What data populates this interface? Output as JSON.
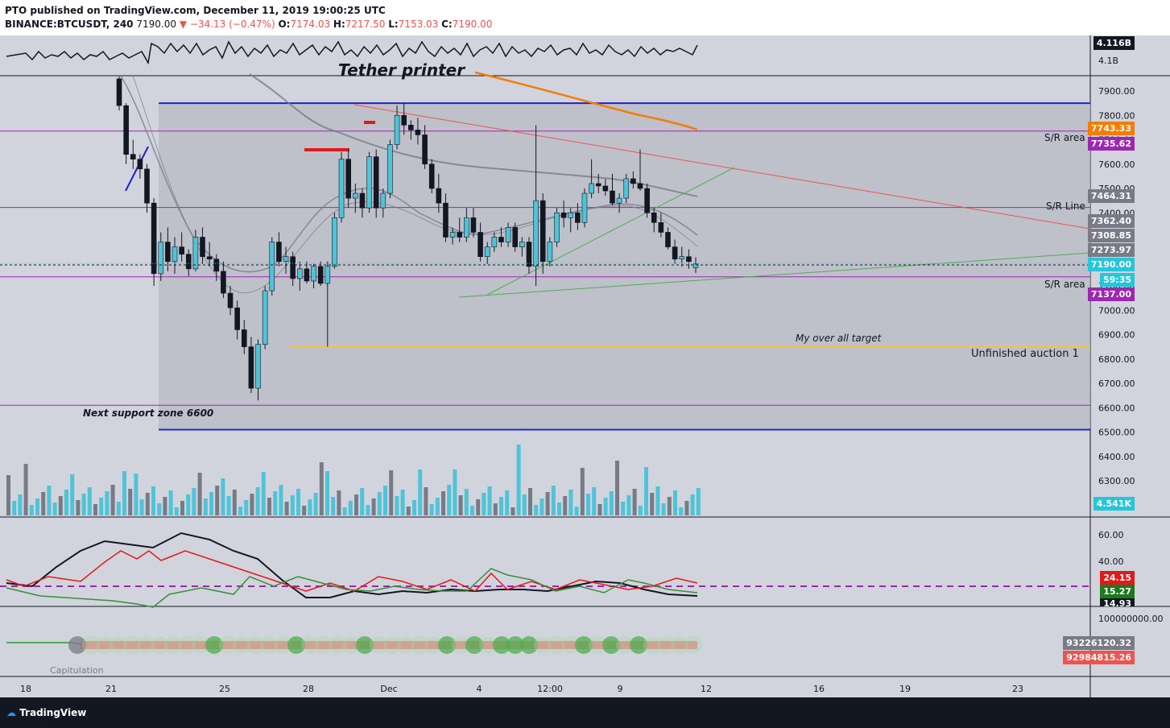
{
  "header": {
    "published": "PTO published on TradingView.com, December 11, 2019 19:00:25 UTC",
    "symbol": "BINANCE:BTCUSDT, 240",
    "price": "7190.00",
    "change": "▼ −34.13 (−0.47%)",
    "o": "7174.03",
    "h": "7217.50",
    "l": "7153.03",
    "c": "7190.00"
  },
  "annotations": {
    "tether": "Tether printer",
    "sr_area_1": "S/R area",
    "sr_line": "S/R Line",
    "sr_area_2": "S/R area",
    "target": "My over all target",
    "auction": "Unfinished auction 1",
    "support": "Next support zone  6600",
    "capitulation": "Capitulation"
  },
  "price_labels": [
    {
      "text": "4.116B",
      "bg": "#131722"
    },
    {
      "text": "7743.33",
      "bg": "#f57c00"
    },
    {
      "text": "7735.62",
      "bg": "#9c27b0"
    },
    {
      "text": "7464.31",
      "bg": "#787b86"
    },
    {
      "text": "7362.40",
      "bg": "#787b86"
    },
    {
      "text": "7308.85",
      "bg": "#787b86"
    },
    {
      "text": "7273.97",
      "bg": "#787b86"
    },
    {
      "text": "7190.00",
      "bg": "#26c6da"
    },
    {
      "text": "59:35",
      "bg": "#26c6da"
    },
    {
      "text": "7137.00",
      "bg": "#9c27b0"
    },
    {
      "text": "4.541K",
      "bg": "#26c6da"
    },
    {
      "text": "24.15",
      "bg": "#e31919"
    },
    {
      "text": "15.27",
      "bg": "#1b7a1b"
    },
    {
      "text": "14.93",
      "bg": "#131722"
    },
    {
      "text": "93226120.32",
      "bg": "#787b86"
    },
    {
      "text": "92984815.26",
      "bg": "#ef5350"
    }
  ],
  "footer": {
    "brand": "TradingView"
  },
  "colors": {
    "up": "#4fc3d7",
    "down": "#131722",
    "bg": "#d1d4dc",
    "shade": "#b9bcc6"
  },
  "chart_data": {
    "type": "candlestick",
    "price_axis_ticks": [
      "7900.00",
      "7800.00",
      "7700.00",
      "7600.00",
      "7500.00",
      "7400.00",
      "7300.00",
      "7200.00",
      "7100.00",
      "7000.00",
      "6900.00",
      "6800.00",
      "6700.00",
      "6600.00",
      "6500.00",
      "6400.00",
      "6300.00"
    ],
    "volume_axis_ticks": [
      "4.1B"
    ],
    "osc_axis_ticks": [
      "60.00",
      "40.00"
    ],
    "bottom_axis_ticks": [
      "100000000.00"
    ],
    "x_ticks": [
      "18",
      "21",
      "25",
      "28",
      "Dec",
      "4",
      "12:00",
      "9",
      "12",
      "16",
      "19",
      "23"
    ],
    "ylim": [
      6250,
      7950
    ],
    "levels": {
      "blue_top": 7850,
      "blue_bottom": 6510,
      "purple_sr1": 7735.62,
      "purple_sr_line": 7422,
      "purple_sr2": 7137,
      "purple_support": 6610,
      "target": 6850
    },
    "candles": [
      [
        7950,
        7960,
        7820,
        7840
      ],
      [
        7840,
        7850,
        7600,
        7640
      ],
      [
        7640,
        7700,
        7580,
        7620
      ],
      [
        7620,
        7640,
        7540,
        7580
      ],
      [
        7580,
        7600,
        7400,
        7440
      ],
      [
        7440,
        7460,
        7100,
        7150
      ],
      [
        7150,
        7320,
        7120,
        7280
      ],
      [
        7280,
        7340,
        7160,
        7200
      ],
      [
        7200,
        7300,
        7150,
        7260
      ],
      [
        7260,
        7320,
        7200,
        7230
      ],
      [
        7230,
        7250,
        7140,
        7170
      ],
      [
        7170,
        7330,
        7160,
        7300
      ],
      [
        7300,
        7340,
        7190,
        7220
      ],
      [
        7220,
        7280,
        7180,
        7210
      ],
      [
        7210,
        7230,
        7120,
        7160
      ],
      [
        7160,
        7200,
        7050,
        7070
      ],
      [
        7070,
        7100,
        6980,
        7010
      ],
      [
        7010,
        7040,
        6880,
        6920
      ],
      [
        6920,
        6960,
        6820,
        6850
      ],
      [
        6850,
        6890,
        6660,
        6680
      ],
      [
        6680,
        6880,
        6630,
        6860
      ],
      [
        6860,
        7100,
        6840,
        7080
      ],
      [
        7080,
        7300,
        7060,
        7280
      ],
      [
        7280,
        7320,
        7180,
        7200
      ],
      [
        7200,
        7260,
        7150,
        7220
      ],
      [
        7220,
        7240,
        7100,
        7130
      ],
      [
        7130,
        7200,
        7080,
        7170
      ],
      [
        7170,
        7200,
        7110,
        7120
      ],
      [
        7120,
        7190,
        7090,
        7180
      ],
      [
        7180,
        7200,
        7100,
        7110
      ],
      [
        7110,
        7200,
        6850,
        7180
      ],
      [
        7180,
        7400,
        7170,
        7380
      ],
      [
        7380,
        7650,
        7360,
        7620
      ],
      [
        7620,
        7660,
        7420,
        7460
      ],
      [
        7460,
        7520,
        7400,
        7480
      ],
      [
        7480,
        7500,
        7380,
        7420
      ],
      [
        7420,
        7650,
        7400,
        7630
      ],
      [
        7630,
        7660,
        7380,
        7420
      ],
      [
        7420,
        7500,
        7380,
        7480
      ],
      [
        7480,
        7700,
        7460,
        7680
      ],
      [
        7680,
        7840,
        7660,
        7800
      ],
      [
        7800,
        7850,
        7720,
        7760
      ],
      [
        7760,
        7780,
        7700,
        7740
      ],
      [
        7740,
        7790,
        7680,
        7720
      ],
      [
        7720,
        7760,
        7580,
        7600
      ],
      [
        7600,
        7620,
        7480,
        7500
      ],
      [
        7500,
        7560,
        7400,
        7440
      ],
      [
        7440,
        7480,
        7280,
        7300
      ],
      [
        7300,
        7340,
        7270,
        7320
      ],
      [
        7320,
        7380,
        7280,
        7300
      ],
      [
        7300,
        7420,
        7280,
        7380
      ],
      [
        7380,
        7420,
        7300,
        7320
      ],
      [
        7320,
        7360,
        7200,
        7220
      ],
      [
        7220,
        7280,
        7190,
        7260
      ],
      [
        7260,
        7320,
        7240,
        7300
      ],
      [
        7300,
        7340,
        7260,
        7280
      ],
      [
        7280,
        7360,
        7260,
        7340
      ],
      [
        7340,
        7360,
        7240,
        7260
      ],
      [
        7260,
        7300,
        7220,
        7280
      ],
      [
        7280,
        7300,
        7150,
        7180
      ],
      [
        7180,
        7760,
        7100,
        7450
      ],
      [
        7450,
        7480,
        7150,
        7200
      ],
      [
        7200,
        7300,
        7180,
        7280
      ],
      [
        7280,
        7420,
        7260,
        7400
      ],
      [
        7400,
        7450,
        7340,
        7380
      ],
      [
        7380,
        7420,
        7320,
        7400
      ],
      [
        7400,
        7440,
        7330,
        7360
      ],
      [
        7360,
        7500,
        7340,
        7480
      ],
      [
        7480,
        7620,
        7460,
        7520
      ],
      [
        7520,
        7560,
        7480,
        7510
      ],
      [
        7510,
        7540,
        7470,
        7490
      ],
      [
        7490,
        7560,
        7430,
        7440
      ],
      [
        7440,
        7480,
        7400,
        7460
      ],
      [
        7460,
        7560,
        7440,
        7540
      ],
      [
        7540,
        7570,
        7500,
        7520
      ],
      [
        7520,
        7660,
        7490,
        7500
      ],
      [
        7500,
        7520,
        7380,
        7400
      ],
      [
        7400,
        7420,
        7320,
        7360
      ],
      [
        7360,
        7400,
        7300,
        7320
      ],
      [
        7320,
        7340,
        7250,
        7260
      ],
      [
        7260,
        7290,
        7190,
        7210
      ],
      [
        7210,
        7260,
        7180,
        7220
      ],
      [
        7220,
        7250,
        7170,
        7200
      ],
      [
        7174.03,
        7217.5,
        7153.03,
        7190
      ]
    ]
  }
}
